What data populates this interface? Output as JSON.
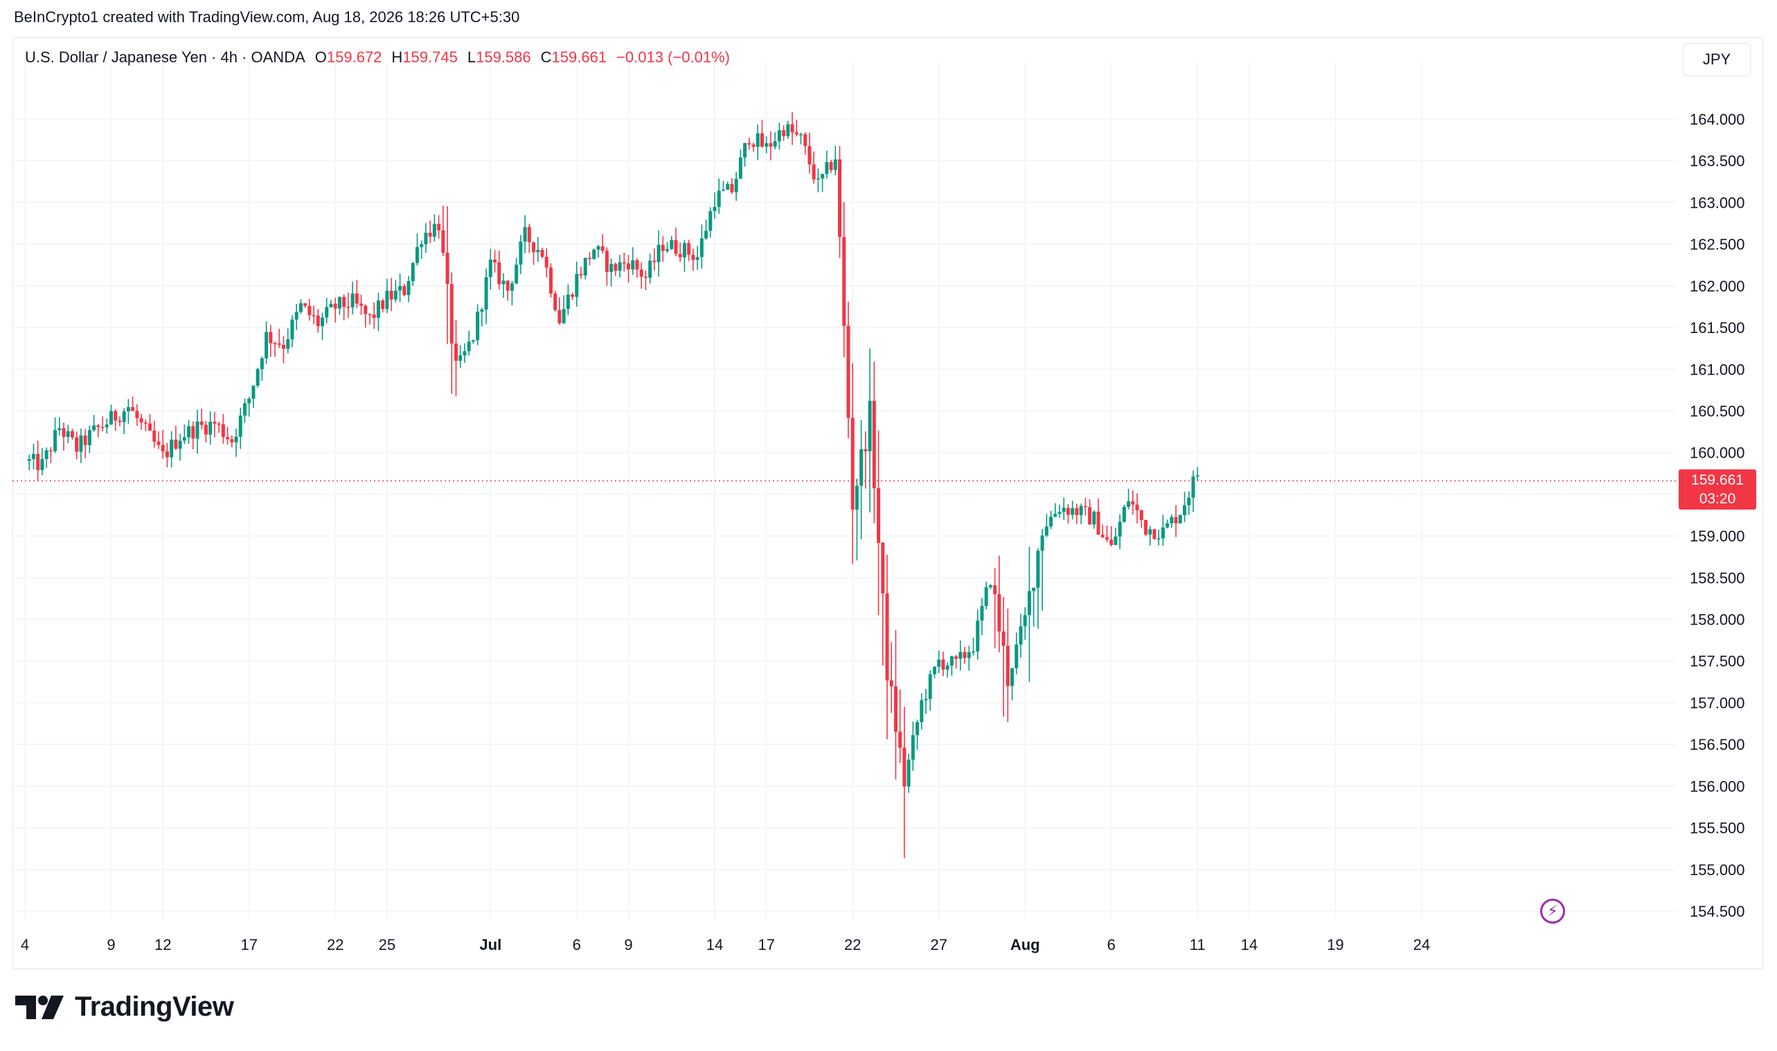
{
  "header": {
    "text": "BeInCrypto1 created with TradingView.com, Aug 18, 2026 18:26 UTC+5:30"
  },
  "legend": {
    "symbol": "U.S. Dollar / Japanese Yen · 4h · OANDA",
    "open_label": "O",
    "open": "159.672",
    "high_label": "H",
    "high": "159.745",
    "low_label": "L",
    "low": "159.586",
    "close_label": "C",
    "close": "159.661",
    "change": "−0.013 (−0.01%)"
  },
  "currency_button": "JPY",
  "last_price": {
    "value": "159.661",
    "countdown": "03:20",
    "level": 159.661
  },
  "colors": {
    "up": "#089981",
    "down": "#f23645",
    "grid": "#f0f3fa",
    "text": "#131722",
    "event": "#9c27b0"
  },
  "event_icon": "lightning-icon",
  "brand": {
    "name": "TradingView",
    "logo_icon": "tradingview-logo-icon"
  },
  "chart_data": {
    "type": "candlestick",
    "title": "U.S. Dollar / Japanese Yen · 4h · OANDA",
    "ylim": [
      154.2,
      164.6
    ],
    "y_ticks": [
      "164.000",
      "163.500",
      "163.000",
      "162.500",
      "162.000",
      "161.500",
      "161.000",
      "160.500",
      "160.000",
      "159.500",
      "159.000",
      "158.500",
      "158.000",
      "157.500",
      "157.000",
      "156.500",
      "156.000",
      "155.500",
      "155.000",
      "154.500"
    ],
    "x_ticks": [
      {
        "label": "4",
        "day": 0
      },
      {
        "label": "9",
        "day": 5
      },
      {
        "label": "12",
        "day": 8
      },
      {
        "label": "17",
        "day": 13
      },
      {
        "label": "22",
        "day": 18
      },
      {
        "label": "25",
        "day": 21
      },
      {
        "label": "Jul",
        "day": 27
      },
      {
        "label": "6",
        "day": 32
      },
      {
        "label": "9",
        "day": 35
      },
      {
        "label": "14",
        "day": 40
      },
      {
        "label": "17",
        "day": 43
      },
      {
        "label": "22",
        "day": 48
      },
      {
        "label": "27",
        "day": 53
      },
      {
        "label": "Aug",
        "day": 58
      },
      {
        "label": "6",
        "day": 63
      },
      {
        "label": "11",
        "day": 68
      },
      {
        "label": "14",
        "day": 71
      },
      {
        "label": "19",
        "day": 76
      },
      {
        "label": "24",
        "day": 81
      }
    ],
    "bold_x_ticks": [
      "Jul",
      "Aug"
    ],
    "price_path": [
      [
        0,
        159.9
      ],
      [
        1,
        159.85
      ],
      [
        2,
        160.3
      ],
      [
        3,
        160.05
      ],
      [
        4,
        160.25
      ],
      [
        5,
        160.4
      ],
      [
        6,
        160.55
      ],
      [
        7,
        160.25
      ],
      [
        8,
        159.95
      ],
      [
        9,
        160.2
      ],
      [
        10,
        160.3
      ],
      [
        11,
        160.35
      ],
      [
        12,
        160.15
      ],
      [
        13,
        160.65
      ],
      [
        14,
        161.4
      ],
      [
        15,
        161.3
      ],
      [
        16,
        161.75
      ],
      [
        17,
        161.55
      ],
      [
        18,
        161.75
      ],
      [
        19,
        161.8
      ],
      [
        20,
        161.6
      ],
      [
        21,
        161.85
      ],
      [
        22,
        161.95
      ],
      [
        23,
        162.6
      ],
      [
        24,
        162.75
      ],
      [
        25,
        160.95
      ],
      [
        26,
        161.4
      ],
      [
        27,
        162.25
      ],
      [
        28,
        161.95
      ],
      [
        29,
        162.6
      ],
      [
        30,
        162.4
      ],
      [
        31,
        161.6
      ],
      [
        32,
        162.1
      ],
      [
        33,
        162.45
      ],
      [
        34,
        162.2
      ],
      [
        35,
        162.3
      ],
      [
        36,
        162.1
      ],
      [
        37,
        162.5
      ],
      [
        38,
        162.45
      ],
      [
        39,
        162.35
      ],
      [
        40,
        163.05
      ],
      [
        41,
        163.15
      ],
      [
        42,
        163.8
      ],
      [
        43,
        163.65
      ],
      [
        44,
        163.9
      ],
      [
        45,
        163.75
      ],
      [
        46,
        163.2
      ],
      [
        47,
        163.55
      ],
      [
        48,
        159.4
      ],
      [
        49,
        160.45
      ],
      [
        50,
        157.4
      ],
      [
        51,
        156.05
      ],
      [
        52,
        157.0
      ],
      [
        53,
        157.5
      ],
      [
        54,
        157.45
      ],
      [
        55,
        157.7
      ],
      [
        56,
        158.5
      ],
      [
        57,
        157.3
      ],
      [
        58,
        158.0
      ],
      [
        59,
        159.1
      ],
      [
        60,
        159.35
      ],
      [
        61,
        159.3
      ],
      [
        62,
        159.2
      ],
      [
        63,
        158.85
      ],
      [
        64,
        159.45
      ],
      [
        65,
        159.1
      ],
      [
        66,
        159.05
      ],
      [
        67,
        159.3
      ],
      [
        68,
        159.75
      ]
    ]
  }
}
